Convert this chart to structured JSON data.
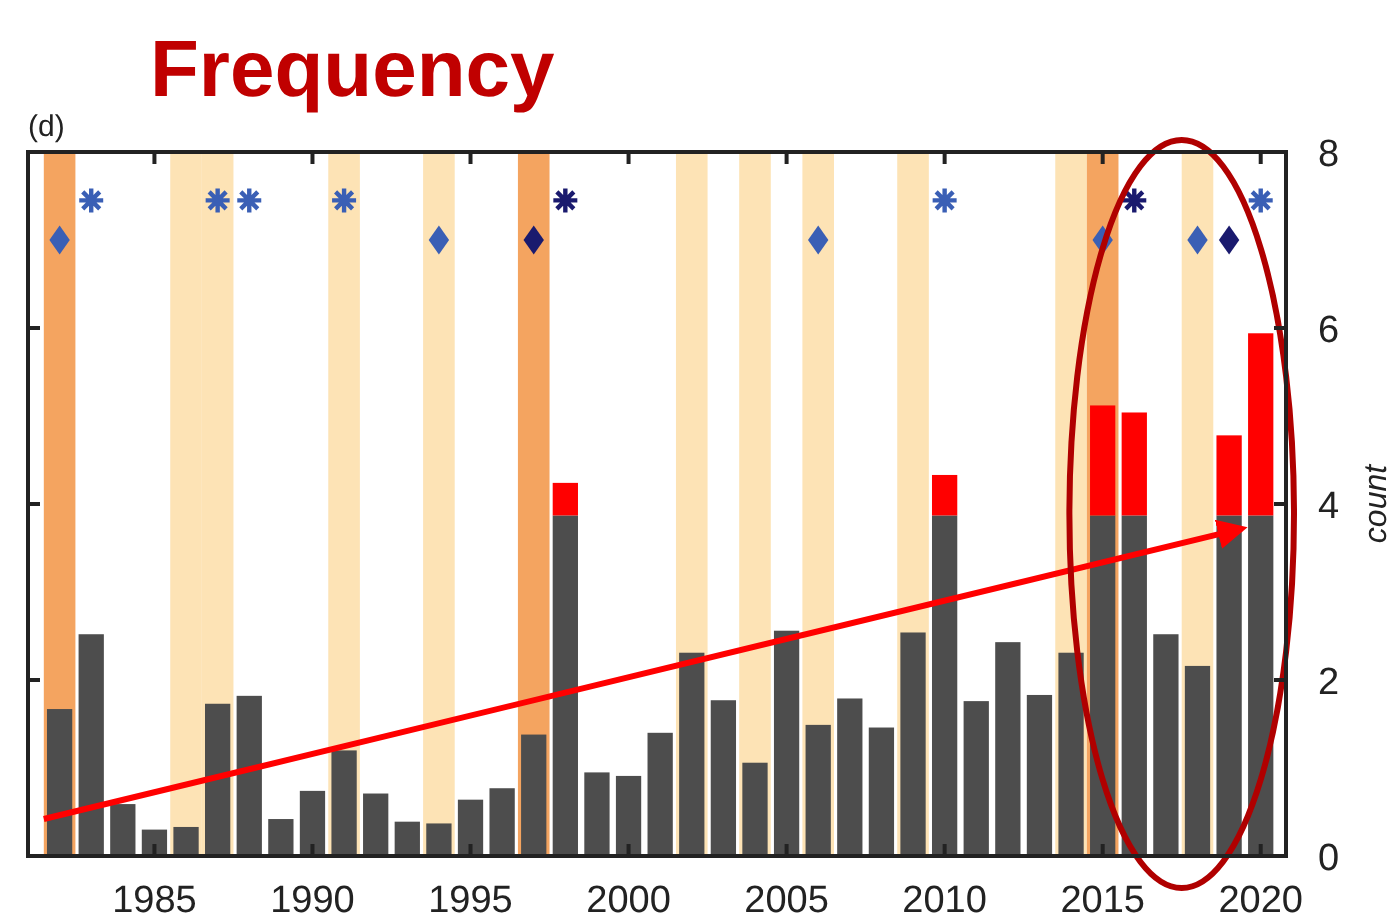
{
  "chart_data": {
    "type": "bar",
    "title": "Frequency",
    "ylabel": "count",
    "annotations": [
      "(d)"
    ],
    "stacked": true,
    "x": [
      1982,
      1983,
      1984,
      1985,
      1986,
      1987,
      1988,
      1989,
      1990,
      1991,
      1992,
      1993,
      1994,
      1995,
      1996,
      1997,
      1998,
      1999,
      2000,
      2001,
      2002,
      2003,
      2004,
      2005,
      2006,
      2007,
      2008,
      2009,
      2010,
      2011,
      2012,
      2013,
      2014,
      2015,
      2016,
      2017,
      2018,
      2019,
      2020
    ],
    "series": [
      {
        "color": "#4d4d4d",
        "values": [
          1.67,
          2.52,
          0.59,
          0.3,
          0.33,
          1.73,
          1.82,
          0.42,
          0.74,
          1.2,
          0.71,
          0.39,
          0.37,
          0.64,
          0.77,
          1.38,
          3.87,
          0.95,
          0.91,
          1.4,
          2.31,
          1.77,
          1.06,
          2.56,
          1.49,
          1.79,
          1.46,
          2.54,
          3.87,
          1.76,
          2.43,
          1.83,
          2.31,
          3.87,
          3.87,
          2.52,
          2.16,
          3.87,
          3.87
        ]
      },
      {
        "color": "#ff0000",
        "values": [
          null,
          null,
          null,
          null,
          null,
          null,
          null,
          null,
          null,
          null,
          null,
          null,
          null,
          null,
          null,
          null,
          0.37,
          null,
          null,
          null,
          null,
          null,
          null,
          null,
          null,
          null,
          null,
          null,
          0.46,
          null,
          null,
          null,
          null,
          1.25,
          1.17,
          null,
          null,
          0.91,
          2.07
        ]
      },
      {
        "type": "scatter",
        "marker": "diamond",
        "color": "#3a5fb5",
        "x": [
          1982,
          1994,
          2006,
          2015,
          2018
        ],
        "values": [
          7,
          7,
          7,
          7,
          7
        ]
      },
      {
        "type": "scatter",
        "marker": "diamond",
        "color": "#1a1a6e",
        "x": [
          1997,
          2019
        ],
        "values": [
          7,
          7
        ]
      },
      {
        "type": "scatter",
        "marker": "cross",
        "color": "#3a5fb5",
        "x": [
          1983,
          1987,
          1988,
          1991,
          2010,
          2020
        ],
        "values": [
          7.45,
          7.45,
          7.45,
          7.45,
          7.45,
          7.45
        ]
      },
      {
        "type": "scatter",
        "marker": "cross",
        "color": "#1a1a6e",
        "x": [
          1998,
          2016
        ],
        "values": [
          7.45,
          7.45
        ]
      },
      {
        "type": "line",
        "color": "#ff0000",
        "x": [
          1981.5,
          2019.4
        ],
        "values": [
          0.42,
          3.72
        ]
      }
    ],
    "xlim": [
      1981,
      2020.8
    ],
    "xticks": [
      1985,
      1990,
      1995,
      2000,
      2005,
      2010,
      2015,
      2020
    ],
    "ylim": [
      0,
      8
    ],
    "yticks": [
      0,
      2,
      4,
      6,
      8
    ],
    "bands": [
      {
        "axis": "x",
        "from": 1981.5,
        "to": 1982.5,
        "color": "#f4a460"
      },
      {
        "axis": "x",
        "from": 1985.5,
        "to": 1986.5,
        "color": "#fde3b5"
      },
      {
        "axis": "x",
        "from": 1986.5,
        "to": 1987.5,
        "color": "#fde3b5"
      },
      {
        "axis": "x",
        "from": 1990.5,
        "to": 1991.5,
        "color": "#fde3b5"
      },
      {
        "axis": "x",
        "from": 1993.5,
        "to": 1994.5,
        "color": "#fde3b5"
      },
      {
        "axis": "x",
        "from": 1996.5,
        "to": 1997.5,
        "color": "#f4a460"
      },
      {
        "axis": "x",
        "from": 2001.5,
        "to": 2002.5,
        "color": "#fde3b5"
      },
      {
        "axis": "x",
        "from": 2003.5,
        "to": 2004.5,
        "color": "#fde3b5"
      },
      {
        "axis": "x",
        "from": 2005.5,
        "to": 2006.5,
        "color": "#fde3b5"
      },
      {
        "axis": "x",
        "from": 2008.5,
        "to": 2009.5,
        "color": "#fde3b5"
      },
      {
        "axis": "x",
        "from": 2013.5,
        "to": 2014.5,
        "color": "#fde3b5"
      },
      {
        "axis": "x",
        "from": 2014.5,
        "to": 2015.5,
        "color": "#f4a460"
      },
      {
        "axis": "x",
        "from": 2017.5,
        "to": 2018.5,
        "color": "#fde3b5"
      }
    ]
  }
}
